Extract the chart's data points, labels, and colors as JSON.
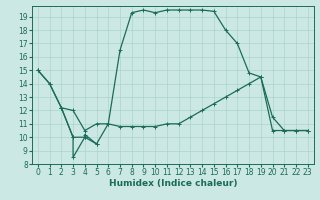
{
  "title": "",
  "xlabel": "Humidex (Indice chaleur)",
  "bg_color": "#cce8e4",
  "grid_color": "#aad4cc",
  "line_color": "#1a6b5a",
  "xlim": [
    -0.5,
    23.5
  ],
  "ylim": [
    8,
    19.8
  ],
  "yticks": [
    8,
    9,
    10,
    11,
    12,
    13,
    14,
    15,
    16,
    17,
    18,
    19
  ],
  "xticks": [
    0,
    1,
    2,
    3,
    4,
    5,
    6,
    7,
    8,
    9,
    10,
    11,
    12,
    13,
    14,
    15,
    16,
    17,
    18,
    19,
    20,
    21,
    22,
    23
  ],
  "line1_x": [
    0,
    1,
    2,
    3,
    4,
    5,
    6,
    7,
    8,
    9,
    10,
    11,
    12,
    13,
    14,
    15,
    16,
    17,
    18,
    19,
    20,
    21,
    22,
    23
  ],
  "line1_y": [
    15,
    14,
    12.2,
    12.0,
    10.5,
    11.0,
    11.0,
    16.5,
    19.3,
    19.5,
    19.3,
    19.5,
    19.5,
    19.5,
    19.5,
    19.4,
    18.0,
    17.0,
    14.8,
    14.5,
    11.5,
    10.5,
    10.5,
    10.5
  ],
  "line2_x": [
    0,
    1,
    2,
    3,
    4,
    5,
    6,
    7,
    8,
    9,
    10,
    11,
    12,
    13,
    14,
    15,
    16,
    17,
    18,
    19,
    20,
    21,
    22,
    23
  ],
  "line2_y": [
    15,
    14,
    12.2,
    10.0,
    10.0,
    9.5,
    11.0,
    10.8,
    10.8,
    10.8,
    10.8,
    11.0,
    11.0,
    11.5,
    12.0,
    12.5,
    13.0,
    13.5,
    14.0,
    14.5,
    10.5,
    10.5,
    10.5,
    10.5
  ],
  "line3_x": [
    2,
    3,
    3,
    4,
    4,
    5
  ],
  "line3_y": [
    12.2,
    10.0,
    8.5,
    10.0,
    10.2,
    9.5
  ],
  "marker_style": "+",
  "marker_size": 3,
  "linewidth": 0.9,
  "tick_fontsize": 5.5,
  "xlabel_fontsize": 6.5
}
